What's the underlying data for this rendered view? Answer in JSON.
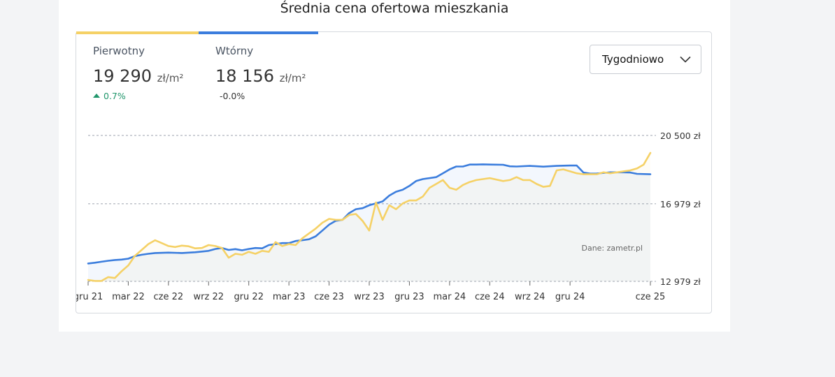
{
  "title": "Średnia cena ofertowa mieszkania",
  "colors": {
    "primary": "#f5d166",
    "secondary": "#3b7ddd",
    "up": "#20966b",
    "grid": "#9ca3af"
  },
  "series_summary": [
    {
      "name": "Pierwotny",
      "value": "19 290",
      "unit": "zł/m²",
      "change": "0.7%",
      "direction": "up"
    },
    {
      "name": "Wtórny",
      "value": "18 156",
      "unit": "zł/m²",
      "change": "-0.0%",
      "direction": "flat"
    }
  ],
  "dropdown": {
    "selected": "Tygodniowo",
    "icon": "chevron-down-icon"
  },
  "chart_data": {
    "type": "line",
    "ylim": [
      12979,
      20500
    ],
    "yticks": [
      {
        "value": 20500,
        "label": "20 500 zł"
      },
      {
        "value": 16979,
        "label": "16 979 zł"
      },
      {
        "value": 12979,
        "label": "12 979 zł"
      }
    ],
    "xticks": [
      {
        "t": 0,
        "label": "gru 21"
      },
      {
        "t": 3,
        "label": "mar 22"
      },
      {
        "t": 6,
        "label": "cze 22"
      },
      {
        "t": 9,
        "label": "wrz 22"
      },
      {
        "t": 12,
        "label": "gru 22"
      },
      {
        "t": 15,
        "label": "mar 23"
      },
      {
        "t": 18,
        "label": "cze 23"
      },
      {
        "t": 21,
        "label": "wrz 23"
      },
      {
        "t": 24,
        "label": "gru 23"
      },
      {
        "t": 27,
        "label": "mar 24"
      },
      {
        "t": 30,
        "label": "cze 24"
      },
      {
        "t": 33,
        "label": "wrz 24"
      },
      {
        "t": 36,
        "label": "gru 24"
      },
      {
        "t": 42,
        "label": "cze 25"
      }
    ],
    "xlim": [
      0,
      42
    ],
    "source": "Dane: zametr.pl",
    "grid": true,
    "series": [
      {
        "name": "Wtórny",
        "color": "#3b7ddd",
        "fill": true,
        "points": [
          [
            0.0,
            13900
          ],
          [
            0.5,
            13940
          ],
          [
            1.0,
            13990
          ],
          [
            1.5,
            14040
          ],
          [
            2.0,
            14080
          ],
          [
            2.5,
            14100
          ],
          [
            3.0,
            14150
          ],
          [
            3.5,
            14280
          ],
          [
            4.0,
            14350
          ],
          [
            4.5,
            14400
          ],
          [
            5.0,
            14440
          ],
          [
            6.0,
            14460
          ],
          [
            7.0,
            14440
          ],
          [
            8.0,
            14480
          ],
          [
            9.0,
            14550
          ],
          [
            9.5,
            14650
          ],
          [
            10.0,
            14700
          ],
          [
            10.5,
            14600
          ],
          [
            11.0,
            14640
          ],
          [
            11.5,
            14580
          ],
          [
            12.0,
            14650
          ],
          [
            12.5,
            14700
          ],
          [
            13.0,
            14680
          ],
          [
            13.5,
            14850
          ],
          [
            14.0,
            14900
          ],
          [
            14.5,
            14950
          ],
          [
            15.0,
            14950
          ],
          [
            15.5,
            15060
          ],
          [
            16.0,
            15100
          ],
          [
            16.5,
            15150
          ],
          [
            17.0,
            15300
          ],
          [
            17.5,
            15600
          ],
          [
            18.0,
            15900
          ],
          [
            18.5,
            16100
          ],
          [
            19.0,
            16150
          ],
          [
            19.5,
            16500
          ],
          [
            20.0,
            16700
          ],
          [
            20.5,
            16750
          ],
          [
            21.0,
            16900
          ],
          [
            21.5,
            17000
          ],
          [
            22.0,
            17100
          ],
          [
            22.5,
            17400
          ],
          [
            23.0,
            17600
          ],
          [
            23.5,
            17700
          ],
          [
            24.0,
            17900
          ],
          [
            24.5,
            18150
          ],
          [
            25.0,
            18250
          ],
          [
            25.5,
            18300
          ],
          [
            26.0,
            18350
          ],
          [
            26.5,
            18550
          ],
          [
            27.0,
            18750
          ],
          [
            27.5,
            18900
          ],
          [
            28.0,
            18900
          ],
          [
            28.5,
            19000
          ],
          [
            29.0,
            19000
          ],
          [
            29.5,
            19010
          ],
          [
            30.0,
            19000
          ],
          [
            31.0,
            18990
          ],
          [
            31.5,
            18910
          ],
          [
            32.0,
            18900
          ],
          [
            33.0,
            18930
          ],
          [
            34.0,
            18890
          ],
          [
            35.0,
            18930
          ],
          [
            36.0,
            18950
          ],
          [
            36.5,
            18950
          ],
          [
            37.0,
            18590
          ],
          [
            37.5,
            18530
          ],
          [
            38.0,
            18540
          ],
          [
            39.0,
            18600
          ],
          [
            40.0,
            18600
          ],
          [
            40.5,
            18590
          ],
          [
            41.0,
            18520
          ],
          [
            42.0,
            18500
          ]
        ]
      },
      {
        "name": "Pierwotny",
        "color": "#f5d166",
        "fill": true,
        "points": [
          [
            0.0,
            13050
          ],
          [
            0.5,
            13000
          ],
          [
            1.0,
            13000
          ],
          [
            1.5,
            13200
          ],
          [
            2.0,
            13150
          ],
          [
            2.5,
            13500
          ],
          [
            3.0,
            13800
          ],
          [
            3.5,
            14300
          ],
          [
            4.0,
            14600
          ],
          [
            4.5,
            14900
          ],
          [
            5.0,
            15100
          ],
          [
            5.5,
            14950
          ],
          [
            6.0,
            14800
          ],
          [
            6.5,
            14750
          ],
          [
            7.0,
            14820
          ],
          [
            7.5,
            14790
          ],
          [
            8.0,
            14680
          ],
          [
            8.5,
            14700
          ],
          [
            9.0,
            14850
          ],
          [
            9.5,
            14800
          ],
          [
            10.0,
            14700
          ],
          [
            10.5,
            14200
          ],
          [
            11.0,
            14400
          ],
          [
            11.5,
            14350
          ],
          [
            12.0,
            14500
          ],
          [
            12.5,
            14400
          ],
          [
            13.0,
            14550
          ],
          [
            13.5,
            14500
          ],
          [
            14.0,
            15000
          ],
          [
            14.5,
            14800
          ],
          [
            15.0,
            14900
          ],
          [
            15.5,
            14850
          ],
          [
            16.0,
            15200
          ],
          [
            16.5,
            15450
          ],
          [
            17.0,
            15700
          ],
          [
            17.5,
            16000
          ],
          [
            18.0,
            16200
          ],
          [
            18.5,
            16150
          ],
          [
            19.0,
            16150
          ],
          [
            19.5,
            16400
          ],
          [
            20.0,
            16450
          ],
          [
            20.5,
            16100
          ],
          [
            21.0,
            15600
          ],
          [
            21.5,
            17050
          ],
          [
            22.0,
            16150
          ],
          [
            22.5,
            16900
          ],
          [
            23.0,
            16700
          ],
          [
            23.5,
            17000
          ],
          [
            24.0,
            17150
          ],
          [
            24.5,
            17150
          ],
          [
            25.0,
            17350
          ],
          [
            25.5,
            17800
          ],
          [
            26.0,
            18000
          ],
          [
            26.5,
            18200
          ],
          [
            27.0,
            17800
          ],
          [
            27.5,
            17700
          ],
          [
            28.0,
            17950
          ],
          [
            28.5,
            18100
          ],
          [
            29.0,
            18200
          ],
          [
            29.5,
            18250
          ],
          [
            30.0,
            18300
          ],
          [
            31.0,
            18150
          ],
          [
            31.5,
            18200
          ],
          [
            32.0,
            18350
          ],
          [
            32.5,
            18200
          ],
          [
            33.0,
            18200
          ],
          [
            33.5,
            18000
          ],
          [
            34.0,
            17850
          ],
          [
            34.5,
            17900
          ],
          [
            35.0,
            18700
          ],
          [
            35.5,
            18750
          ],
          [
            36.0,
            18650
          ],
          [
            36.5,
            18550
          ],
          [
            37.0,
            18500
          ],
          [
            37.5,
            18500
          ],
          [
            38.0,
            18500
          ],
          [
            38.5,
            18600
          ],
          [
            39.0,
            18550
          ],
          [
            39.5,
            18600
          ],
          [
            40.0,
            18650
          ],
          [
            40.5,
            18700
          ],
          [
            41.0,
            18800
          ],
          [
            41.5,
            19000
          ],
          [
            42.0,
            19600
          ]
        ]
      }
    ]
  }
}
